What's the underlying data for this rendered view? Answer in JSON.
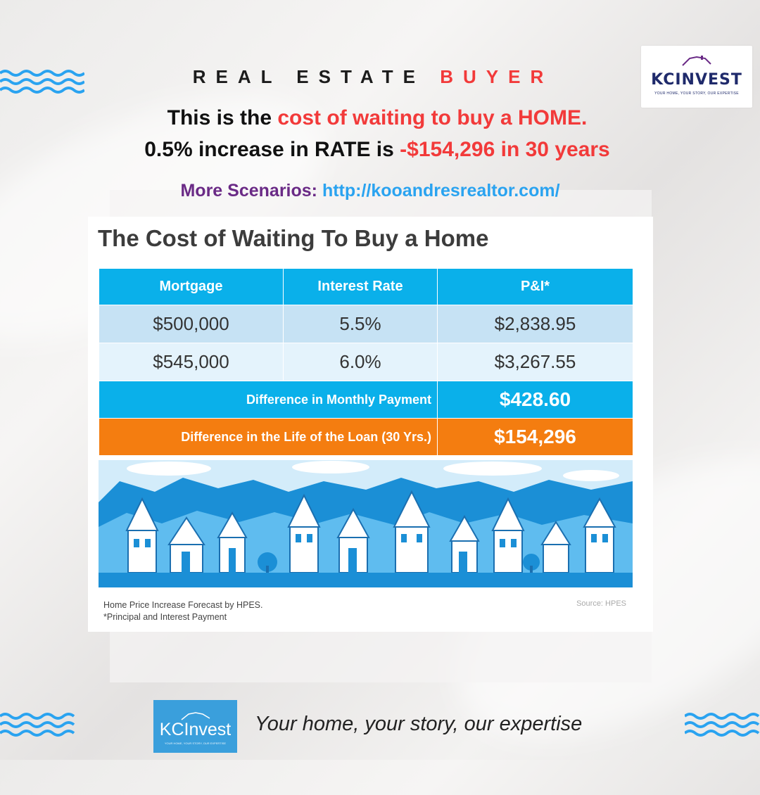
{
  "header": {
    "kicker_a": "REAL ESTATE",
    "kicker_b": "BUYER",
    "line1_a": "This is the ",
    "line1_b": "cost of waiting to buy a HOME.",
    "line2_a": "0.5% increase in RATE is ",
    "line2_b": "-$154,296 in 30 years",
    "more_label": "More Scenarios",
    "more_colon": ":",
    "more_url": "http://kooandresrealtor.com/"
  },
  "logo_top": {
    "brand": "KCINVEST",
    "tagline": "YOUR HOME, YOUR STORY, OUR EXPERTISE"
  },
  "card": {
    "title": "The Cost of Waiting To Buy a Home",
    "columns": [
      "Mortgage",
      "Interest Rate",
      "P&I*"
    ],
    "rows": [
      [
        "$500,000",
        "5.5%",
        "$2,838.95"
      ],
      [
        "$545,000",
        "6.0%",
        "$3,267.55"
      ]
    ],
    "monthly_label": "Difference in Monthly Payment",
    "monthly_value": "$428.60",
    "life_label": "Difference in the Life of the Loan (30 Yrs.)",
    "life_value": "$154,296",
    "note1": "Home Price Increase Forecast by HPES.",
    "note2": "*Principal and Interest Payment",
    "source": "Source: HPES"
  },
  "footer": {
    "logo_brand": "KCInvest",
    "logo_tagline": "YOUR HOME, YOUR STORY, OUR EXPERTISE",
    "tagline": "Your home, your story, our expertise"
  },
  "colors": {
    "accent_red": "#f23a3a",
    "header_blue": "#0ab0ea",
    "accent_orange": "#f47d10",
    "purple": "#6a2a86",
    "link_blue": "#2aa3f0"
  }
}
